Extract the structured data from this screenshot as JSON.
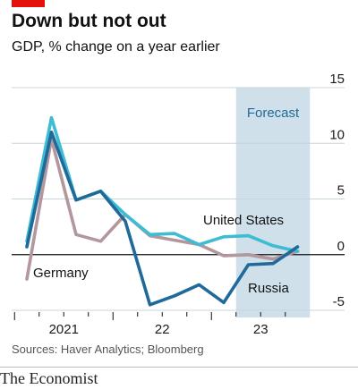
{
  "header": {
    "title": "Down but not out",
    "subtitle": "GDP, % change on a year earlier"
  },
  "footer": {
    "source": "Sources: Haver Analytics; Bloomberg",
    "publisher": "The Economist"
  },
  "colors": {
    "brand_red": "#e3120b",
    "russia": "#1f6a9a",
    "united_states": "#3ebcd2",
    "germany": "#b2979c",
    "forecast_band": "#cfe0ea",
    "zero_line": "#121212",
    "grid": "#c8d4db"
  },
  "chart_data": {
    "type": "line",
    "x": [
      "2021 Q1",
      "2021 Q2",
      "2021 Q3",
      "2021 Q4",
      "2022 Q1",
      "2022 Q2",
      "2022 Q3",
      "2022 Q4",
      "2023 Q1",
      "2023 Q2",
      "2023 Q3",
      "2023 Q4"
    ],
    "x_tick_labels": [
      {
        "label": "2021",
        "at": 1.5
      },
      {
        "label": "22",
        "at": 5.5
      },
      {
        "label": "23",
        "at": 9.5
      }
    ],
    "ylim": [
      -5,
      15
    ],
    "y_ticks": [
      -5,
      0,
      5,
      10,
      15
    ],
    "y_tick_labels": [
      "-5",
      "0",
      "5",
      "10",
      "15"
    ],
    "grid": true,
    "forecast": {
      "label": "Forecast",
      "from": 8.5,
      "to": 11.5
    },
    "series": [
      {
        "name": "Germany",
        "color_key": "germany",
        "values": [
          -2.2,
          10.4,
          1.8,
          1.2,
          3.6,
          1.7,
          1.3,
          0.9,
          -0.1,
          0.0,
          -0.4,
          0.3
        ]
      },
      {
        "name": "United States",
        "color_key": "united_states",
        "values": [
          1.2,
          12.3,
          4.9,
          5.7,
          3.6,
          1.8,
          1.9,
          0.9,
          1.6,
          1.7,
          0.8,
          0.3
        ]
      },
      {
        "name": "Russia",
        "color_key": "russia",
        "values": [
          0.7,
          11.0,
          4.9,
          5.7,
          3.0,
          -4.5,
          -3.7,
          -2.7,
          -4.3,
          -0.9,
          -0.8,
          0.7
        ]
      }
    ]
  }
}
